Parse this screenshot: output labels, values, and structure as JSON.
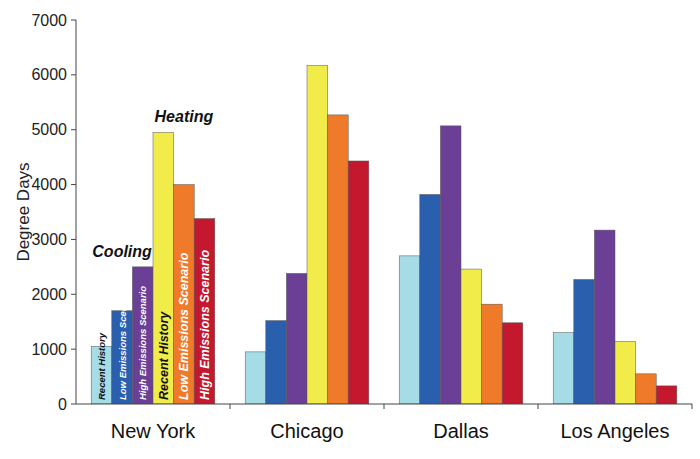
{
  "chart_data": {
    "type": "bar",
    "y_label": "Degree Days",
    "categories": [
      "New York",
      "Chicago",
      "Dallas",
      "Los Angeles"
    ],
    "series": [
      {
        "name": "Recent History",
        "color": "#a6dce6",
        "values": [
          1050,
          950,
          2700,
          1300
        ]
      },
      {
        "name": "Low Emissions Scenario",
        "color": "#2a5fae",
        "values": [
          1700,
          1520,
          3820,
          2270
        ]
      },
      {
        "name": "High Emissions Scenario",
        "color": "#6b3f96",
        "values": [
          2500,
          2380,
          5070,
          3170
        ]
      },
      {
        "name": "Recent History",
        "color": "#f2ec4a",
        "values": [
          4950,
          6170,
          2460,
          1140
        ]
      },
      {
        "name": "Low Emissions Scenario",
        "color": "#ef7a2a",
        "values": [
          4000,
          5270,
          1820,
          550
        ]
      },
      {
        "name": "High Emissions Scenario",
        "color": "#c4182e",
        "values": [
          3380,
          4430,
          1480,
          330
        ]
      }
    ],
    "annotations": [
      "Cooling",
      "Heating"
    ],
    "ylim": [
      0,
      7000
    ],
    "yticks": [
      0,
      1000,
      2000,
      3000,
      4000,
      5000,
      6000,
      7000
    ],
    "grid": false
  }
}
